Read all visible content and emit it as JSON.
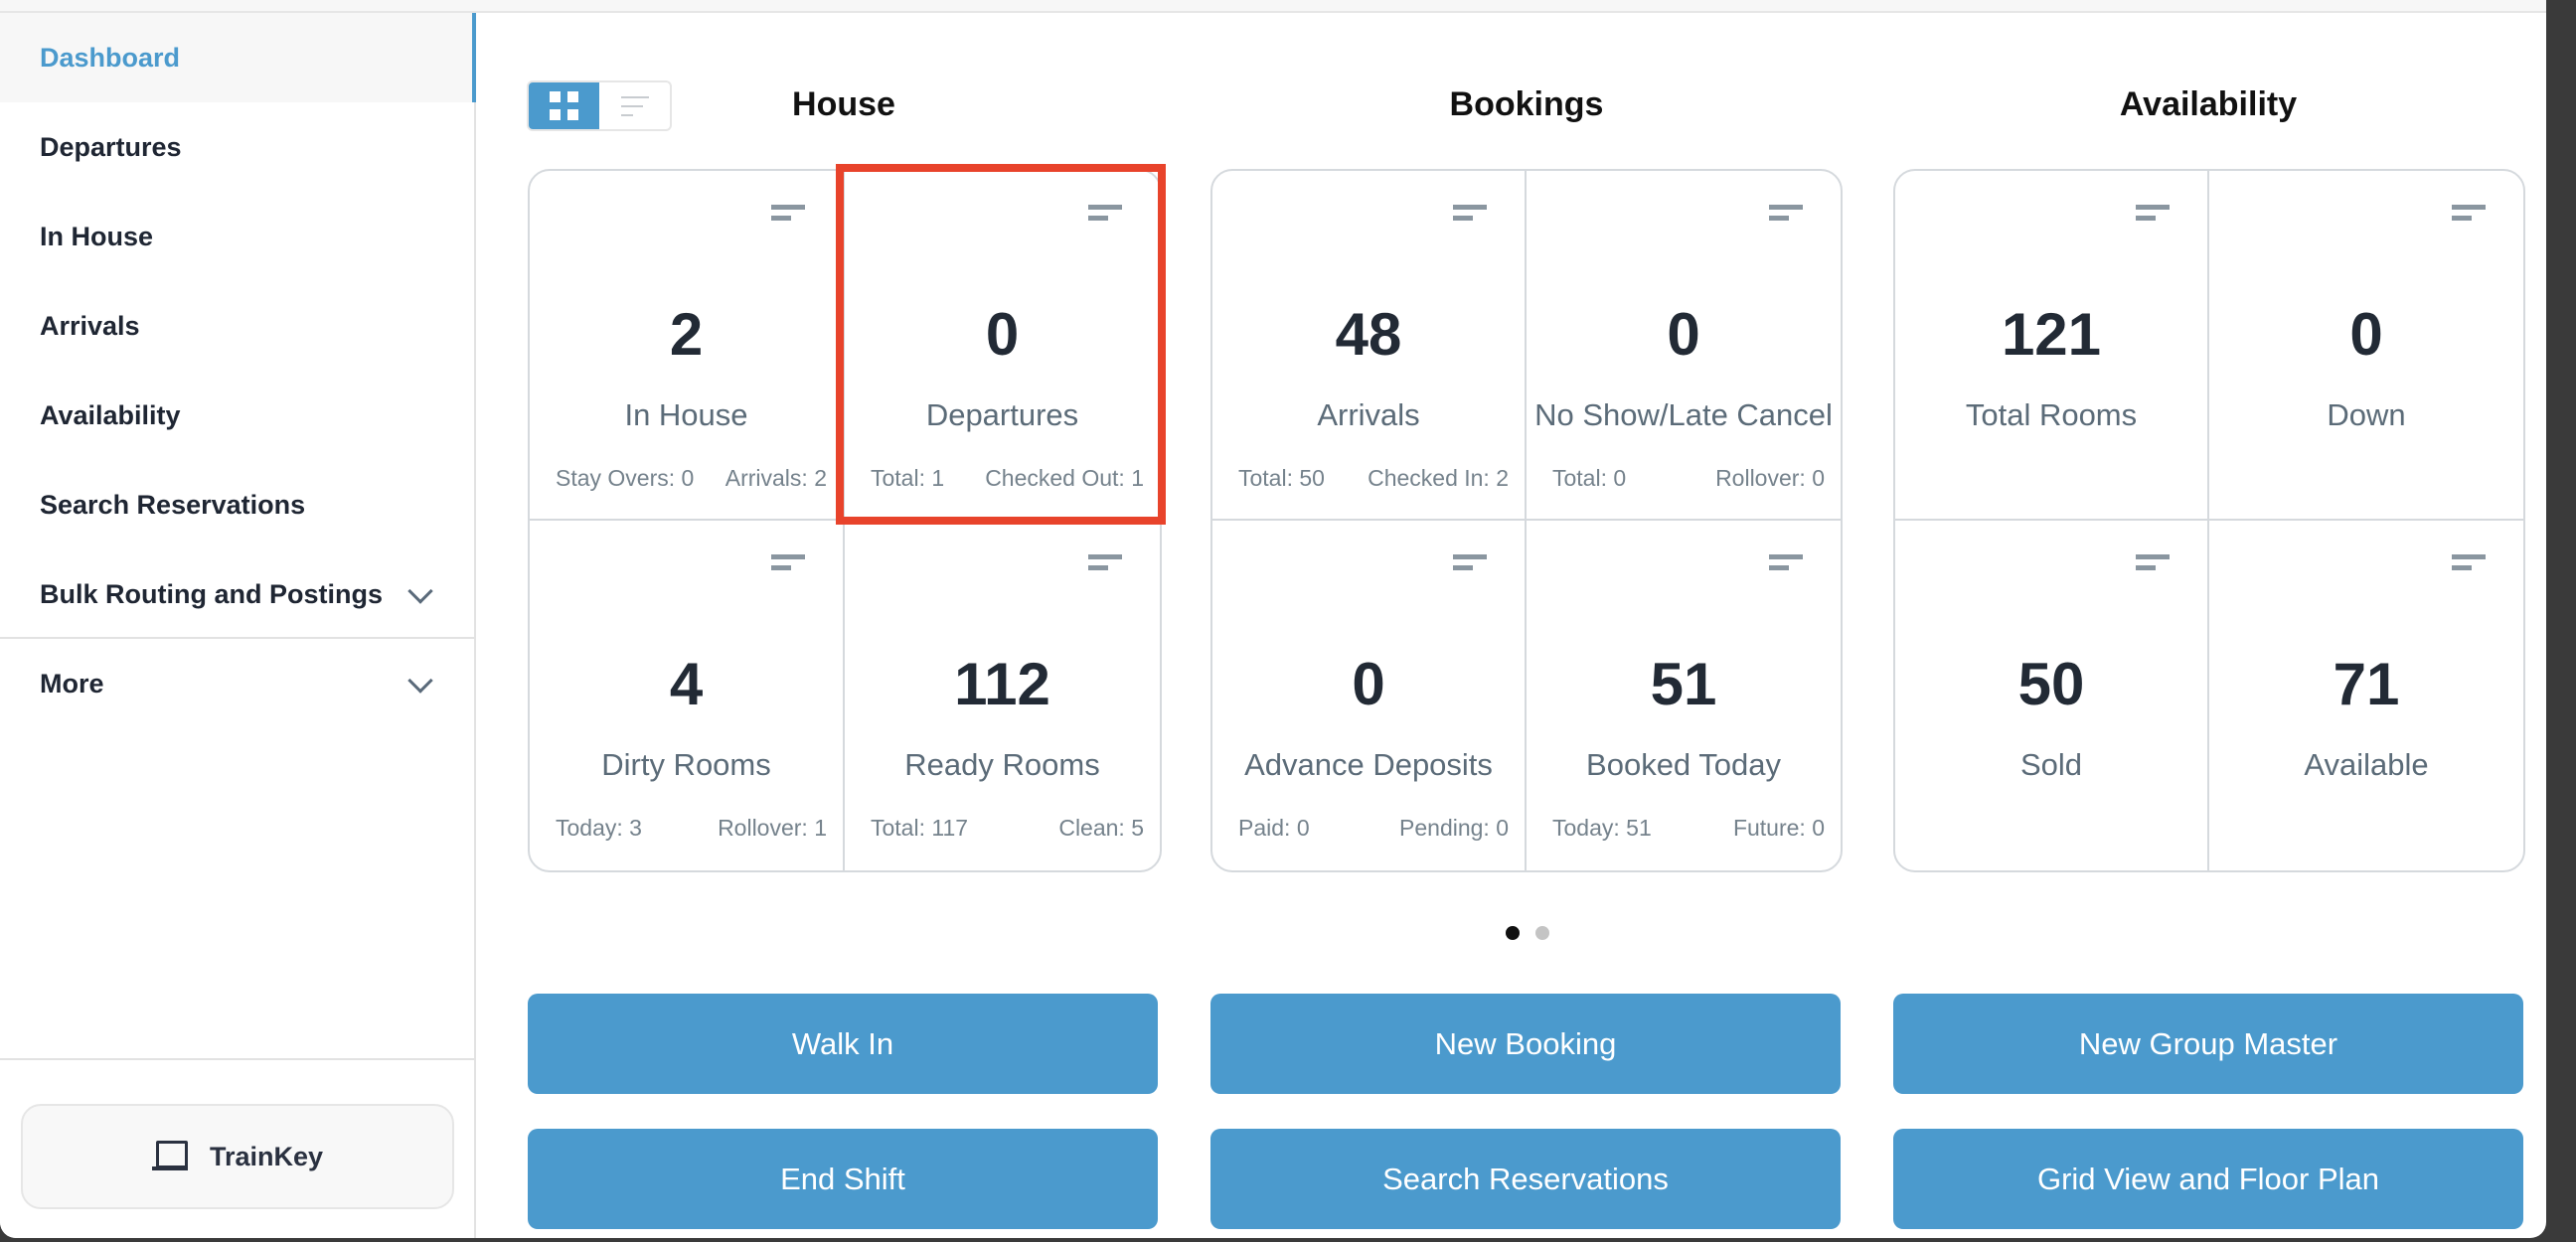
{
  "sidebar": {
    "items": [
      {
        "label": "Dashboard",
        "active": true
      },
      {
        "label": "Departures"
      },
      {
        "label": "In House"
      },
      {
        "label": "Arrivals"
      },
      {
        "label": "Availability"
      },
      {
        "label": "Search Reservations"
      },
      {
        "label": "Bulk Routing and Postings",
        "expandable": true
      },
      {
        "label": "More",
        "expandable": true
      }
    ],
    "trainkey": "TrainKey"
  },
  "sections": {
    "house": "House",
    "bookings": "Bookings",
    "availability": "Availability"
  },
  "house": [
    {
      "value": "2",
      "label": "In House",
      "sub": [
        "Stay Overs: 0",
        "Arrivals: 2"
      ]
    },
    {
      "value": "0",
      "label": "Departures",
      "sub": [
        "Total: 1",
        "Checked Out: 1"
      ]
    },
    {
      "value": "4",
      "label": "Dirty Rooms",
      "sub": [
        "Today: 3",
        "Rollover: 1"
      ]
    },
    {
      "value": "112",
      "label": "Ready Rooms",
      "sub": [
        "Total: 117",
        "Clean: 5"
      ]
    }
  ],
  "bookings": [
    {
      "value": "48",
      "label": "Arrivals",
      "sub": [
        "Total: 50",
        "Checked In: 2"
      ]
    },
    {
      "value": "0",
      "label": "No Show/Late Cancel",
      "sub": [
        "Total: 0",
        "Rollover: 0"
      ]
    },
    {
      "value": "0",
      "label": "Advance Deposits",
      "sub": [
        "Paid: 0",
        "Pending: 0"
      ]
    },
    {
      "value": "51",
      "label": "Booked Today",
      "sub": [
        "Today: 51",
        "Future: 0"
      ]
    }
  ],
  "availability": [
    {
      "value": "121",
      "label": "Total Rooms"
    },
    {
      "value": "0",
      "label": "Down"
    },
    {
      "value": "50",
      "label": "Sold"
    },
    {
      "value": "71",
      "label": "Available"
    }
  ],
  "pager": {
    "pages": 2,
    "current": 1
  },
  "buttons": [
    "Walk In",
    "New Booking",
    "New Group Master",
    "End Shift",
    "Search Reservations",
    "Grid View and Floor Plan"
  ],
  "colors": {
    "accent": "#4b9acd",
    "highlight": "#e8432b"
  }
}
